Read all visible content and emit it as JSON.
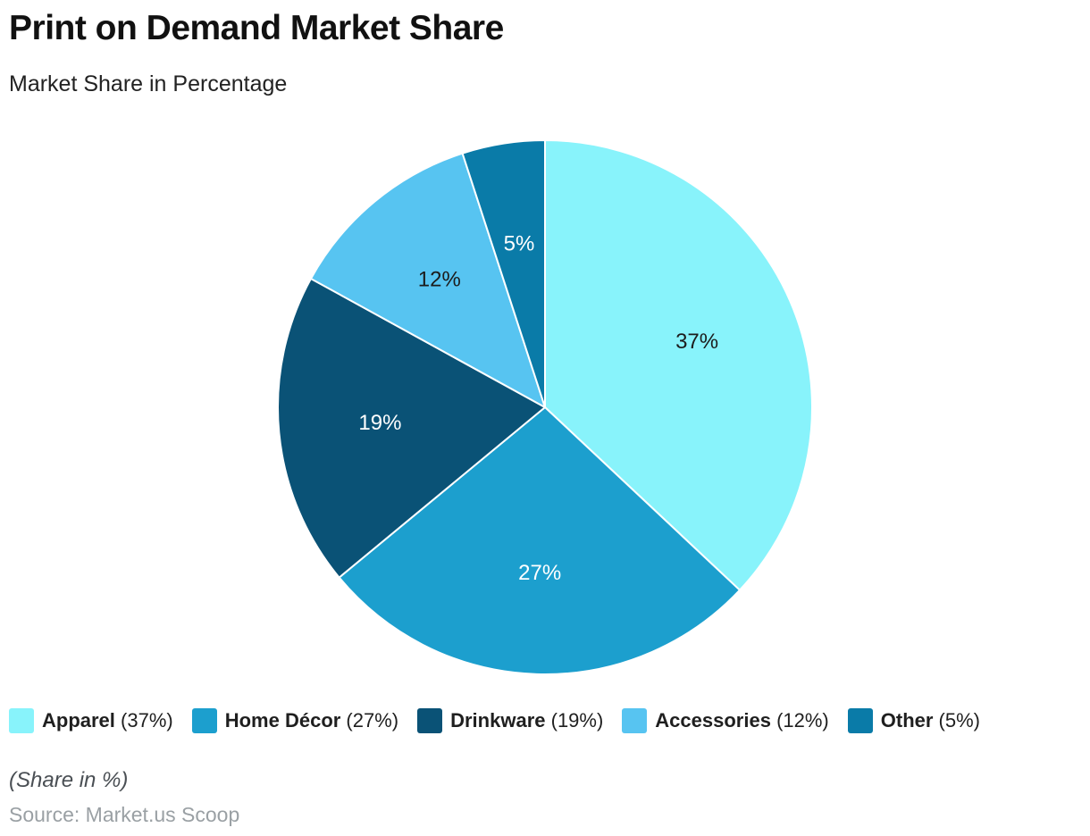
{
  "page": {
    "title": "Print on Demand Market Share",
    "subtitle": "Market Share in Percentage",
    "footnote": "(Share in %)",
    "source": "Source: Market.us Scoop"
  },
  "chart_data": {
    "type": "pie",
    "title": "Print on Demand Market Share",
    "subtitle": "Market Share in Percentage",
    "start_angle_deg": 0,
    "direction": "clockwise",
    "value_suffix": "%",
    "legend_position": "bottom",
    "slices": [
      {
        "label": "Apparel",
        "value": 37,
        "color": "#88F3FB",
        "label_color": "#1c1c1c"
      },
      {
        "label": "Home Décor",
        "value": 27,
        "color": "#1C9FCE",
        "label_color": "#ffffff"
      },
      {
        "label": "Drinkware",
        "value": 19,
        "color": "#0A5276",
        "label_color": "#ffffff"
      },
      {
        "label": "Accessories",
        "value": 12,
        "color": "#57C4F1",
        "label_color": "#1c1c1c"
      },
      {
        "label": "Other",
        "value": 5,
        "color": "#0A7BA8",
        "label_color": "#ffffff"
      }
    ]
  }
}
